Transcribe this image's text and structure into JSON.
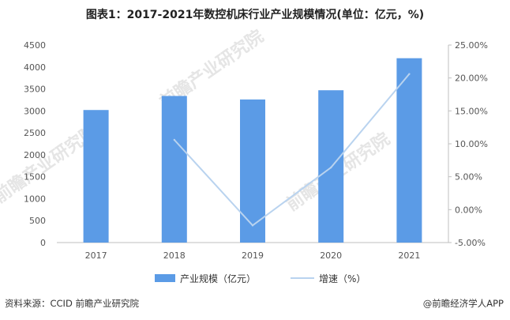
{
  "title": "图表1：2017-2021年数控机床行业产业规模情况(单位：亿元，%)",
  "source": "资料来源：CCID 前瞻产业研究院",
  "brand": "@前瞻经济学人APP",
  "watermark": "前瞻产业研究院",
  "colors": {
    "bar": "#5b9be6",
    "line": "#b9d3ef",
    "axis": "#bfbfbf"
  },
  "chart_data": {
    "type": "bar",
    "categories": [
      "2017",
      "2018",
      "2019",
      "2020",
      "2021"
    ],
    "series": [
      {
        "name": "产业规模（亿元）",
        "type": "bar",
        "axis": "left",
        "values": [
          3020,
          3340,
          3260,
          3470,
          4200
        ]
      },
      {
        "name": "增速（%）",
        "type": "line",
        "axis": "right",
        "values": [
          null,
          10.6,
          -2.4,
          6.4,
          20.6
        ]
      }
    ],
    "y_left": {
      "min": 0,
      "max": 4500,
      "ticks": [
        "0",
        "500",
        "1000",
        "1500",
        "2000",
        "2500",
        "3000",
        "3500",
        "4000",
        "4500"
      ]
    },
    "y_right": {
      "min": -5,
      "max": 25,
      "ticks": [
        "-5.00%",
        "0.00%",
        "5.00%",
        "10.00%",
        "15.00%",
        "20.00%",
        "25.00%"
      ]
    },
    "legend_position": "bottom",
    "grid": false
  }
}
